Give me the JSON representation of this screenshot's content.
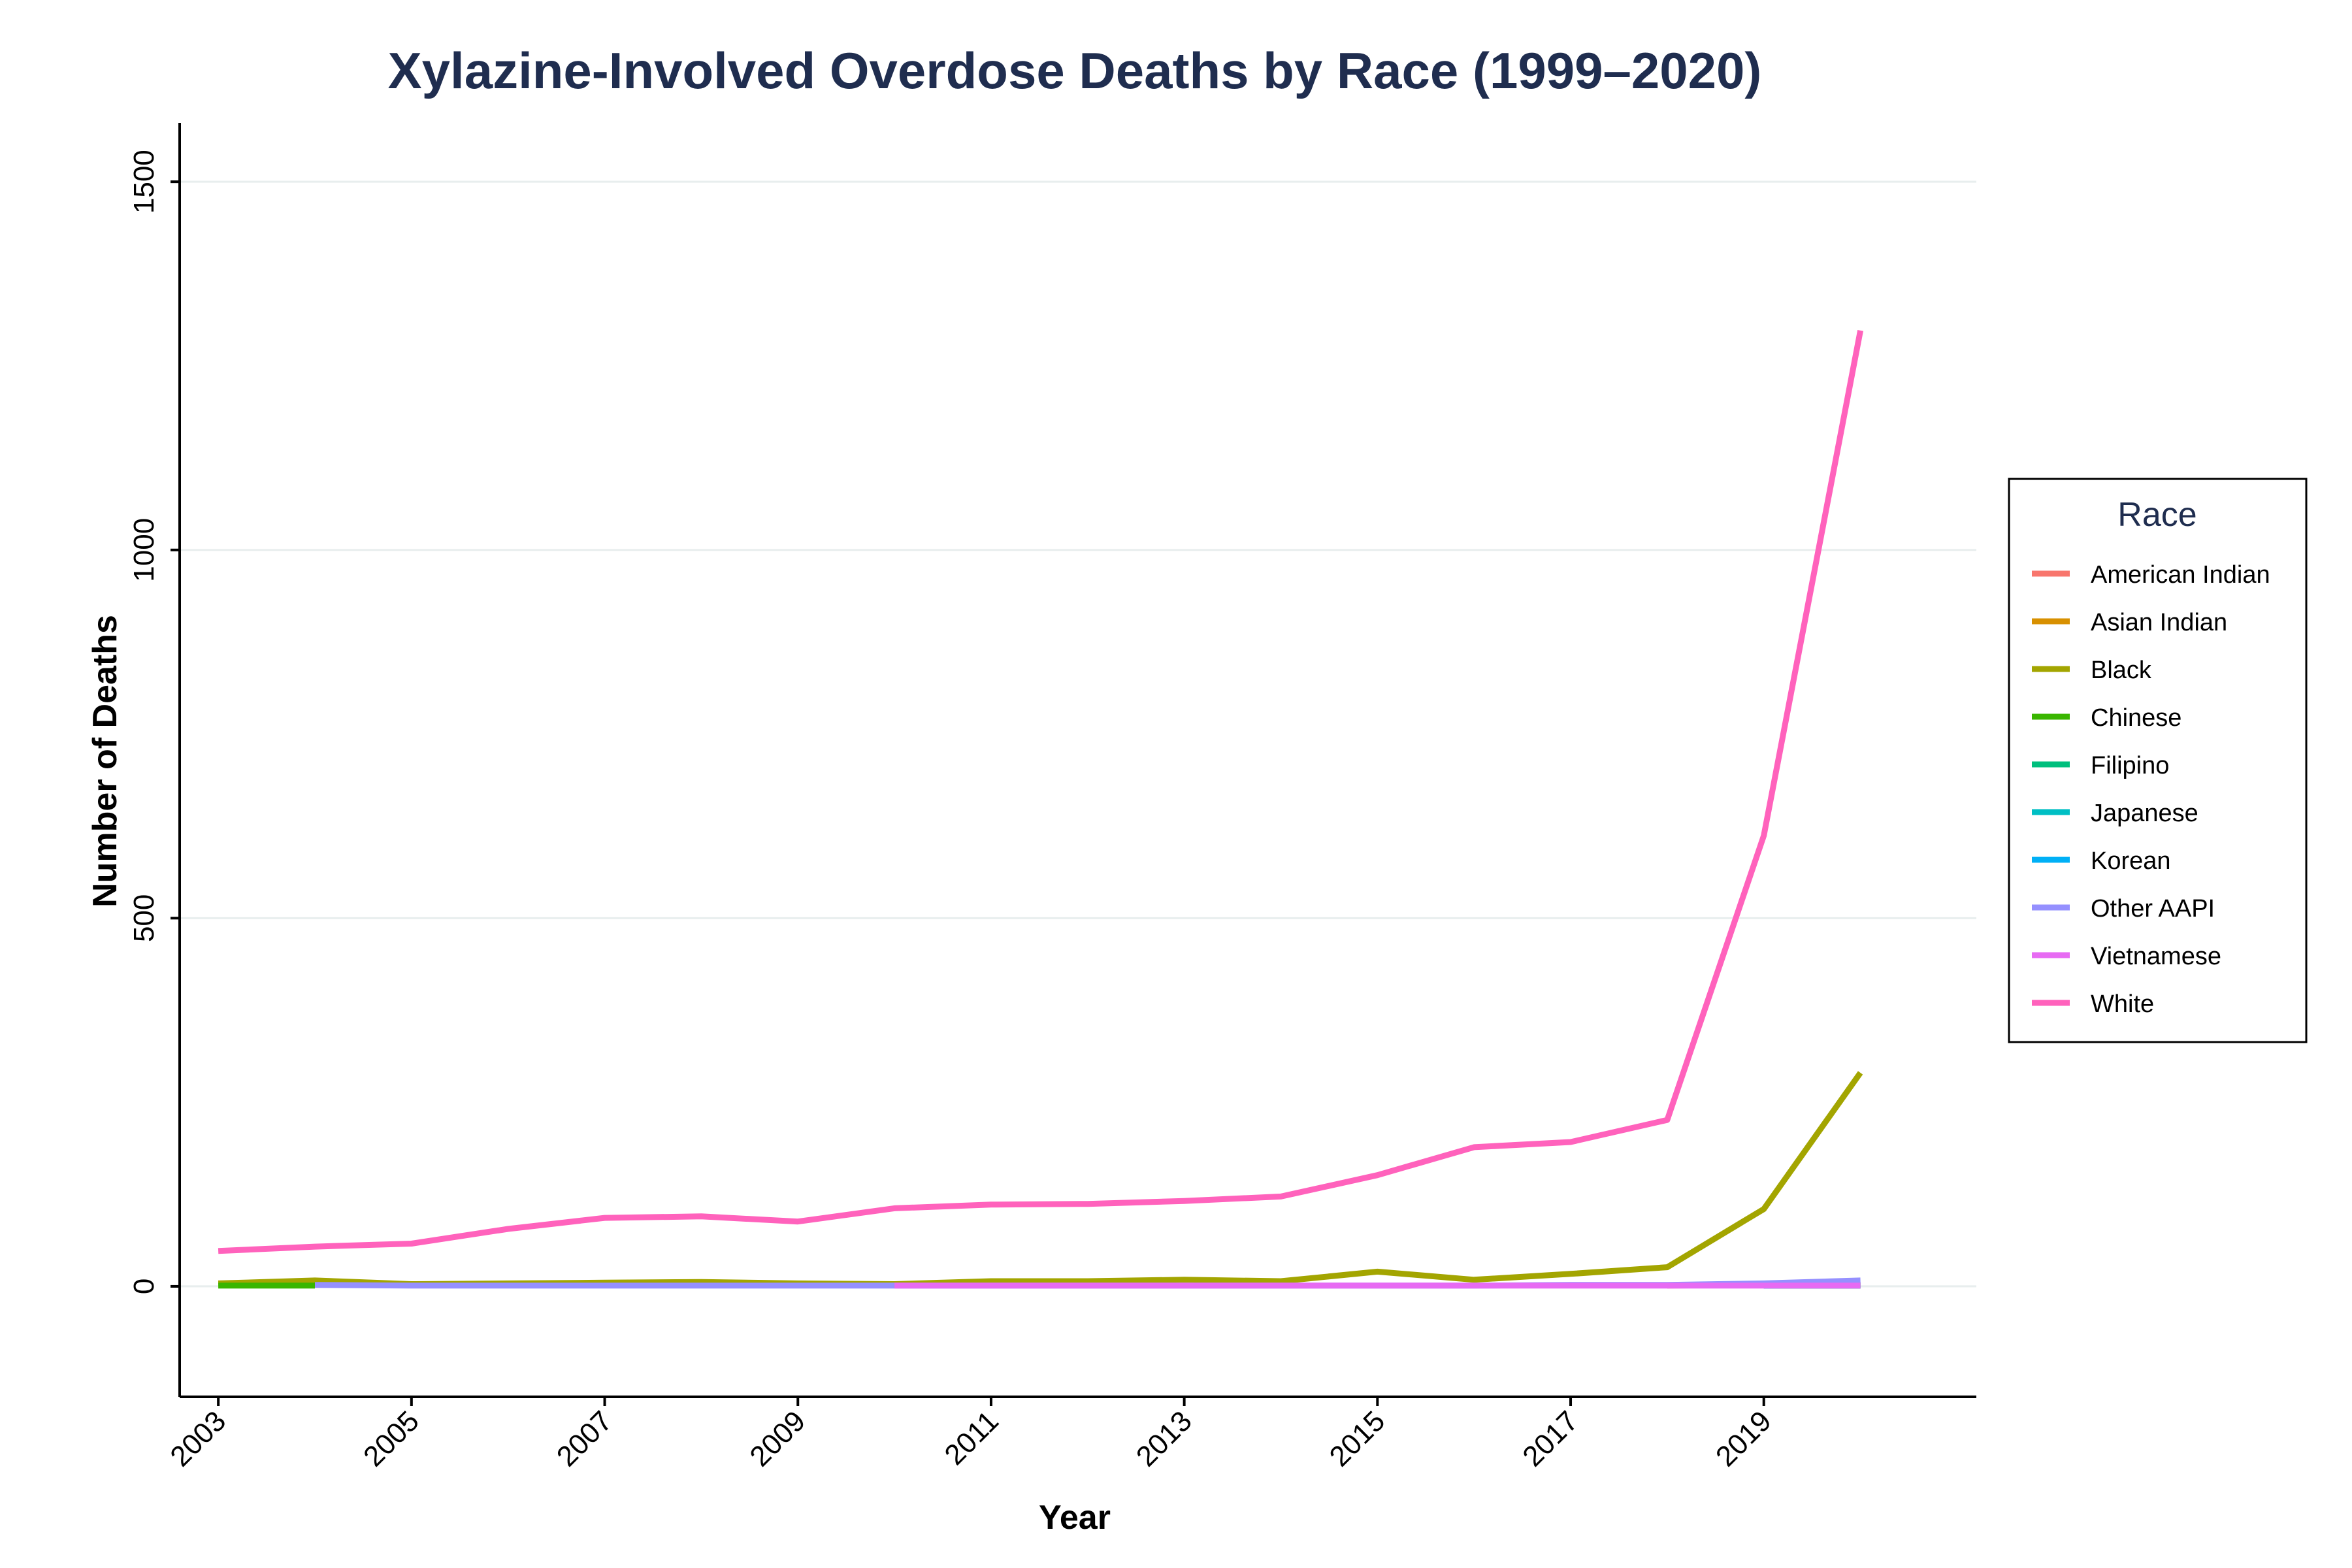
{
  "chart_data": {
    "type": "line",
    "title": "Xylazine-Involved Overdose Deaths by Race (1999–2020)",
    "xlabel": "Year",
    "ylabel": "Number of Deaths",
    "xlim": [
      2002.6,
      2021.2
    ],
    "ylim": [
      -150,
      1580
    ],
    "xticks": [
      2003,
      2005,
      2007,
      2009,
      2011,
      2013,
      2015,
      2017,
      2019
    ],
    "yticks": [
      0,
      500,
      1000,
      1500
    ],
    "grid": "horizontal",
    "legend": {
      "title": "Race",
      "position": "right"
    },
    "series": [
      {
        "name": "American Indian",
        "color": "#F8766D",
        "points": [
          [
            2018,
            1
          ],
          [
            2019,
            2
          ],
          [
            2020,
            2
          ]
        ]
      },
      {
        "name": "Asian Indian",
        "color": "#D89000",
        "points": [
          [
            2019,
            1
          ],
          [
            2020,
            1
          ]
        ]
      },
      {
        "name": "Black",
        "color": "#A3A500",
        "points": [
          [
            2003,
            4
          ],
          [
            2004,
            8
          ],
          [
            2005,
            3
          ],
          [
            2006,
            4
          ],
          [
            2007,
            5
          ],
          [
            2008,
            6
          ],
          [
            2009,
            4
          ],
          [
            2010,
            3
          ],
          [
            2011,
            7
          ],
          [
            2012,
            7
          ],
          [
            2013,
            9
          ],
          [
            2014,
            7
          ],
          [
            2015,
            20
          ],
          [
            2016,
            9
          ],
          [
            2017,
            17
          ],
          [
            2018,
            26
          ],
          [
            2019,
            105
          ],
          [
            2020,
            290
          ]
        ]
      },
      {
        "name": "Chinese",
        "color": "#39B600",
        "points": [
          [
            2003,
            1
          ],
          [
            2004,
            1
          ]
        ]
      },
      {
        "name": "Filipino",
        "color": "#00BF7D",
        "points": [
          [
            2019,
            1
          ],
          [
            2020,
            1
          ]
        ]
      },
      {
        "name": "Japanese",
        "color": "#00BFC4",
        "points": [
          [
            2019,
            1
          ],
          [
            2020,
            1
          ]
        ]
      },
      {
        "name": "Korean",
        "color": "#00B0F6",
        "points": [
          [
            2019,
            1
          ],
          [
            2020,
            2
          ]
        ]
      },
      {
        "name": "Other AAPI",
        "color": "#9590FF",
        "points": [
          [
            2004,
            2
          ],
          [
            2005,
            1
          ],
          [
            2006,
            1
          ],
          [
            2007,
            1
          ],
          [
            2008,
            1
          ],
          [
            2009,
            1
          ],
          [
            2010,
            1
          ],
          [
            2011,
            1
          ],
          [
            2012,
            1
          ],
          [
            2013,
            1
          ],
          [
            2014,
            1
          ],
          [
            2015,
            1
          ],
          [
            2016,
            1
          ],
          [
            2017,
            2
          ],
          [
            2018,
            2
          ],
          [
            2019,
            4
          ],
          [
            2020,
            8
          ]
        ]
      },
      {
        "name": "Vietnamese",
        "color": "#E76BF3",
        "points": [
          [
            2010,
            1
          ],
          [
            2011,
            1
          ],
          [
            2012,
            1
          ],
          [
            2013,
            1
          ],
          [
            2014,
            1
          ],
          [
            2015,
            1
          ],
          [
            2016,
            1
          ],
          [
            2017,
            1
          ],
          [
            2018,
            1
          ],
          [
            2019,
            1
          ],
          [
            2020,
            1
          ]
        ]
      },
      {
        "name": "White",
        "color": "#FF62BC",
        "points": [
          [
            2003,
            48
          ],
          [
            2004,
            54
          ],
          [
            2005,
            58
          ],
          [
            2006,
            78
          ],
          [
            2007,
            93
          ],
          [
            2008,
            95
          ],
          [
            2009,
            88
          ],
          [
            2010,
            106
          ],
          [
            2011,
            111
          ],
          [
            2012,
            112
          ],
          [
            2013,
            116
          ],
          [
            2014,
            122
          ],
          [
            2015,
            151
          ],
          [
            2016,
            189
          ],
          [
            2017,
            196
          ],
          [
            2018,
            226
          ],
          [
            2019,
            612
          ],
          [
            2020,
            1298
          ]
        ]
      }
    ]
  }
}
